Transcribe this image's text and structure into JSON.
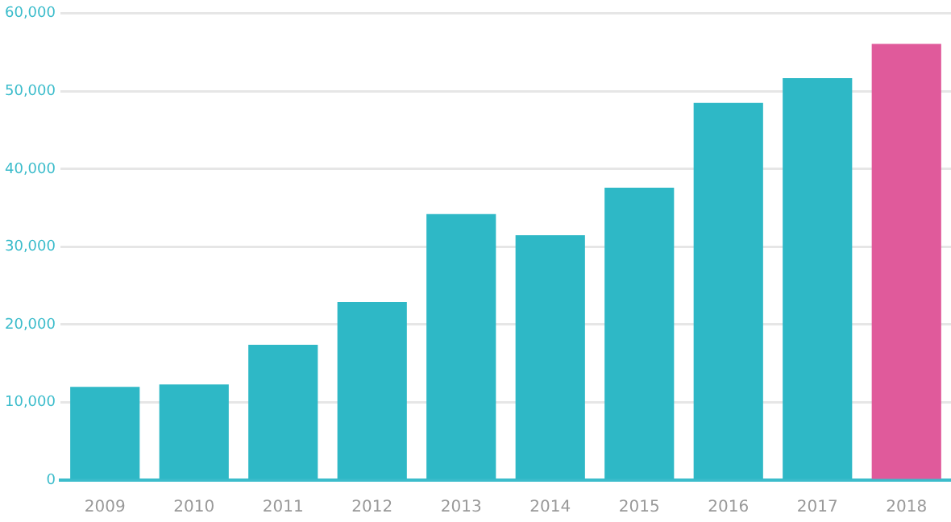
{
  "chart_data": {
    "type": "bar",
    "categories": [
      "2009",
      "2010",
      "2011",
      "2012",
      "2013",
      "2014",
      "2015",
      "2016",
      "2017",
      "2018"
    ],
    "values": [
      12000,
      12300,
      17400,
      22900,
      34200,
      31500,
      37600,
      48500,
      51700,
      56100
    ],
    "colors": [
      "#2eb8c6",
      "#2eb8c6",
      "#2eb8c6",
      "#2eb8c6",
      "#2eb8c6",
      "#2eb8c6",
      "#2eb8c6",
      "#2eb8c6",
      "#2eb8c6",
      "#e05a9b"
    ],
    "ylim": [
      0,
      60000
    ],
    "yticks": [
      {
        "value": 0,
        "label": "0"
      },
      {
        "value": 10000,
        "label": "10,000"
      },
      {
        "value": 20000,
        "label": "20,000"
      },
      {
        "value": 30000,
        "label": "30,000"
      },
      {
        "value": 40000,
        "label": "40,000"
      },
      {
        "value": 50000,
        "label": "50,000"
      },
      {
        "value": 60000,
        "label": "60,000"
      }
    ],
    "grid": "y",
    "legend": false
  }
}
